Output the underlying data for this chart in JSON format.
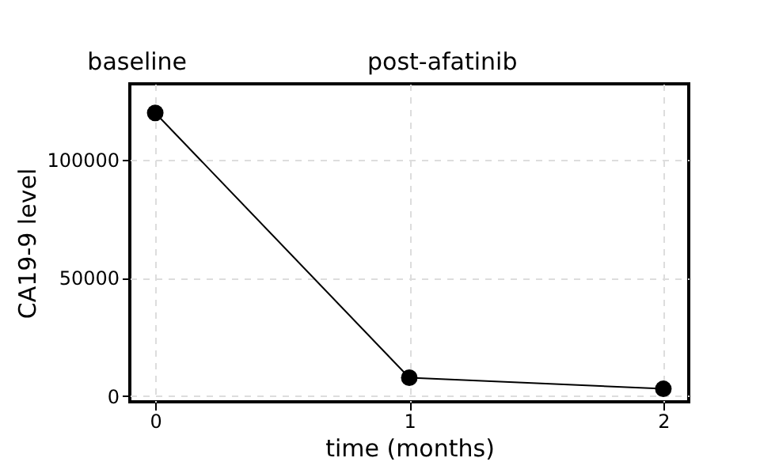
{
  "chart_data": {
    "type": "line",
    "xlabel": "time (months)",
    "ylabel": "CA19-9 level",
    "x": [
      0,
      1,
      2
    ],
    "series": [
      {
        "color": "#000000",
        "values": [
          119700,
          7700,
          3000
        ]
      }
    ],
    "xlim": [
      -0.1,
      2.1
    ],
    "xticks": [
      0,
      1,
      2
    ],
    "ylim": [
      -2500,
      132000
    ],
    "yticks": [
      0,
      50000,
      100000
    ],
    "grid": true,
    "marker": "circle",
    "line_style": "solid",
    "annotations": [
      "baseline",
      "post-afatinib"
    ]
  }
}
